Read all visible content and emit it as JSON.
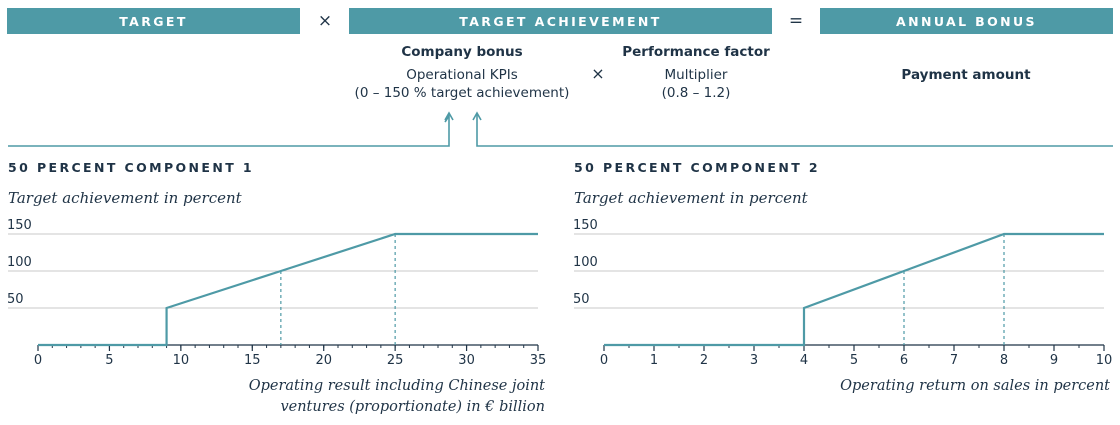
{
  "formula": {
    "target_label": "TARGET",
    "times_1": "×",
    "achievement_label": "TARGET ACHIEVEMENT",
    "equals": "=",
    "bonus_label": "ANNUAL BONUS"
  },
  "details": {
    "company_bonus_title": "Company bonus",
    "company_bonus_line1": "Operational KPIs",
    "company_bonus_line2": "(0 – 150 % target achievement)",
    "times_2": "×",
    "performance_title": "Performance factor",
    "performance_line1": "Multiplier",
    "performance_line2": "(0.8 – 1.2)",
    "payment_amount": "Payment amount"
  },
  "colors": {
    "accent": "#4e9aa6",
    "text": "#1f3346",
    "grid": "#c8c8c8"
  },
  "chart_data": [
    {
      "type": "line",
      "title": "50 PERCENT COMPONENT 1",
      "ylabel": "Target achievement in percent",
      "xlabel_line1": "Operating result including Chinese joint",
      "xlabel_line2": "ventures (proportionate) in € billion",
      "xlim": [
        0,
        35
      ],
      "ylim": [
        0,
        150
      ],
      "x_ticks": [
        0,
        5,
        10,
        15,
        20,
        25,
        30,
        35
      ],
      "y_ticks": [
        50,
        100,
        150
      ],
      "points": [
        [
          0,
          0
        ],
        [
          9,
          0
        ],
        [
          9,
          50
        ],
        [
          17,
          100
        ],
        [
          25,
          150
        ],
        [
          35,
          150
        ]
      ],
      "reference_x": [
        17,
        25
      ],
      "grid": true
    },
    {
      "type": "line",
      "title": "50 PERCENT COMPONENT 2",
      "ylabel": "Target achievement in percent",
      "xlabel_line1": "Operating return on sales in percent",
      "xlabel_line2": "",
      "xlim": [
        0,
        10
      ],
      "ylim": [
        0,
        150
      ],
      "x_ticks": [
        0,
        1,
        2,
        3,
        4,
        5,
        6,
        7,
        8,
        9,
        10
      ],
      "y_ticks": [
        50,
        100,
        150
      ],
      "points": [
        [
          0,
          0
        ],
        [
          4,
          0
        ],
        [
          4,
          50
        ],
        [
          6,
          100
        ],
        [
          8,
          150
        ],
        [
          10,
          150
        ]
      ],
      "reference_x": [
        6,
        8
      ],
      "grid": true
    }
  ]
}
